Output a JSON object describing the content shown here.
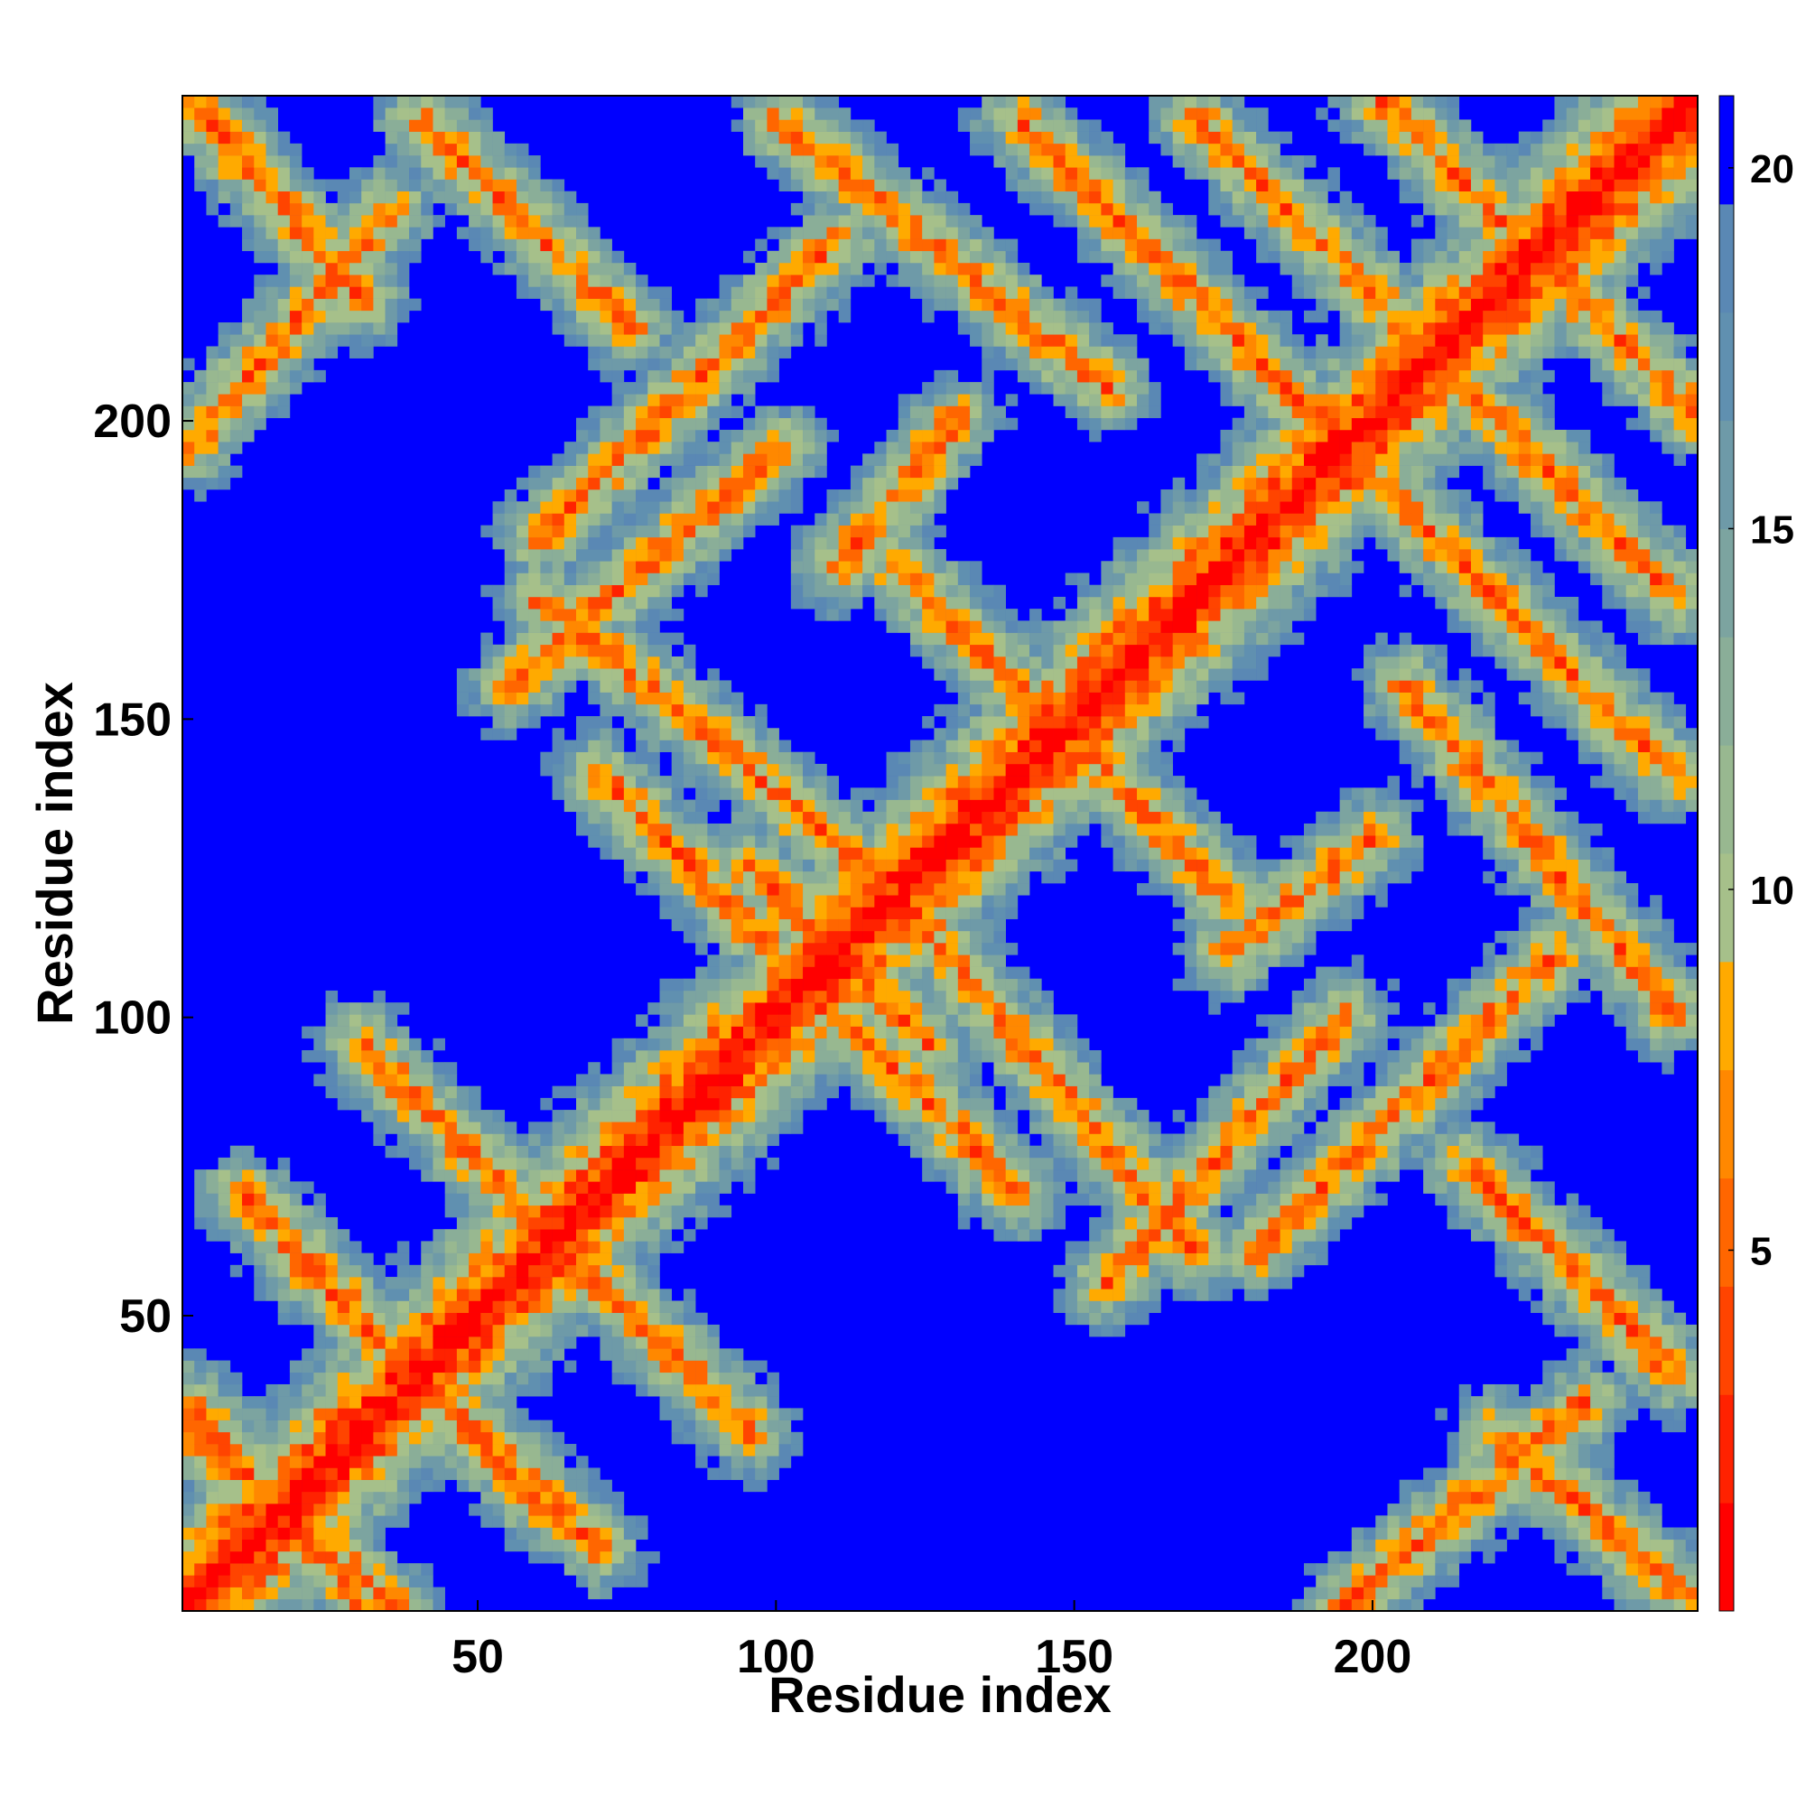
{
  "chart_data": {
    "type": "heatmap",
    "title": "",
    "xlabel": "Residue index",
    "ylabel": "Residue index",
    "n_residues": 254,
    "x_ticks": [
      50,
      100,
      150,
      200
    ],
    "y_ticks": [
      50,
      100,
      150,
      200
    ],
    "xlim": [
      1,
      254
    ],
    "ylim": [
      1,
      254
    ],
    "colorbar": {
      "ticks": [
        5,
        10,
        15,
        20
      ],
      "range": [
        0,
        21
      ],
      "colors": [
        "#ff0000",
        "#ff2200",
        "#ff4400",
        "#ff6600",
        "#ff8800",
        "#ffaa00",
        "#a6c08a",
        "#98b890",
        "#8aae98",
        "#7ca4a0",
        "#6e9aa8",
        "#6090b0",
        "#5a88b4",
        "#0000ff"
      ]
    },
    "description_values": {
      "diagonal_distance": 0,
      "max_distance_shown": 21,
      "contact_bands": [
        {
          "from": [
            1,
            60
          ],
          "to": [
            60,
            1
          ]
        },
        {
          "from": [
            60,
            120
          ],
          "to": [
            120,
            60
          ]
        },
        {
          "from": [
            125,
            160
          ],
          "to": [
            160,
            125
          ]
        },
        {
          "from": [
            160,
            250
          ],
          "to": [
            250,
            160
          ]
        }
      ]
    }
  }
}
